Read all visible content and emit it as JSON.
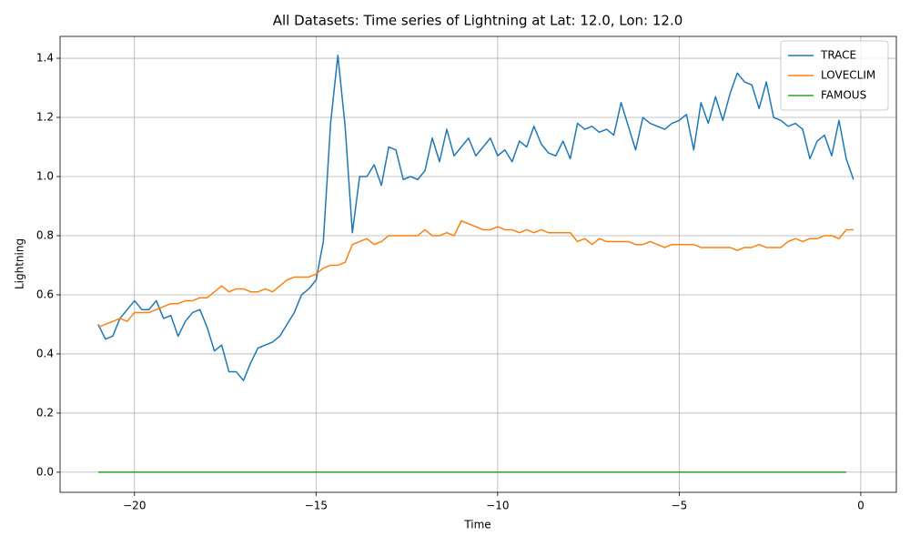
{
  "chart_data": {
    "type": "line",
    "title": "All Datasets: Time series of Lightning at Lat: 12.0, Lon: 12.0",
    "x_label": "Time",
    "y_label": "Lightning",
    "x": [
      -21,
      -20.8,
      -20.6,
      -20.4,
      -20.2,
      -20,
      -19.8,
      -19.6,
      -19.4,
      -19.2,
      -19,
      -18.8,
      -18.6,
      -18.4,
      -18.2,
      -18,
      -17.8,
      -17.6,
      -17.4,
      -17.2,
      -17,
      -16.8,
      -16.6,
      -16.4,
      -16.2,
      -16,
      -15.8,
      -15.6,
      -15.4,
      -15.2,
      -15,
      -14.8,
      -14.6,
      -14.4,
      -14.2,
      -14,
      -13.8,
      -13.6,
      -13.4,
      -13.2,
      -13,
      -12.8,
      -12.6,
      -12.4,
      -12.2,
      -12,
      -11.8,
      -11.6,
      -11.4,
      -11.2,
      -11,
      -10.8,
      -10.6,
      -10.4,
      -10.2,
      -10,
      -9.8,
      -9.6,
      -9.4,
      -9.2,
      -9,
      -8.8,
      -8.6,
      -8.4,
      -8.2,
      -8,
      -7.8,
      -7.6,
      -7.4,
      -7.2,
      -7,
      -6.8,
      -6.6,
      -6.4,
      -6.2,
      -6,
      -5.8,
      -5.6,
      -5.4,
      -5.2,
      -5,
      -4.8,
      -4.6,
      -4.4,
      -4.2,
      -4,
      -3.8,
      -3.6,
      -3.4,
      -3.2,
      -3,
      -2.8,
      -2.6,
      -2.4,
      -2.2,
      -2,
      -1.8,
      -1.6,
      -1.4,
      -1.2,
      -1,
      -0.8,
      -0.6,
      -0.4,
      -0.2
    ],
    "series": [
      {
        "name": "TRACE",
        "color": "#1f77b4",
        "values": [
          0.5,
          0.45,
          0.46,
          0.52,
          0.55,
          0.58,
          0.55,
          0.55,
          0.58,
          0.52,
          0.53,
          0.46,
          0.51,
          0.54,
          0.55,
          0.49,
          0.41,
          0.43,
          0.34,
          0.34,
          0.31,
          0.37,
          0.42,
          0.43,
          0.44,
          0.46,
          0.5,
          0.54,
          0.6,
          0.62,
          0.65,
          0.78,
          1.18,
          1.41,
          1.17,
          0.81,
          1.0,
          1.0,
          1.04,
          0.97,
          1.1,
          1.09,
          0.99,
          1.0,
          0.99,
          1.02,
          1.13,
          1.05,
          1.16,
          1.07,
          1.1,
          1.13,
          1.07,
          1.1,
          1.13,
          1.07,
          1.09,
          1.05,
          1.12,
          1.1,
          1.17,
          1.11,
          1.08,
          1.07,
          1.12,
          1.06,
          1.18,
          1.16,
          1.17,
          1.15,
          1.16,
          1.14,
          1.25,
          1.17,
          1.09,
          1.2,
          1.18,
          1.17,
          1.16,
          1.18,
          1.19,
          1.21,
          1.09,
          1.25,
          1.18,
          1.27,
          1.19,
          1.28,
          1.35,
          1.32,
          1.31,
          1.23,
          1.32,
          1.2,
          1.19,
          1.17,
          1.18,
          1.16,
          1.06,
          1.12,
          1.14,
          1.07,
          1.19,
          1.06,
          0.99
        ]
      },
      {
        "name": "LOVECLIM",
        "color": "#ff7f0e",
        "values": [
          0.49,
          0.5,
          0.51,
          0.52,
          0.51,
          0.54,
          0.54,
          0.54,
          0.55,
          0.56,
          0.57,
          0.57,
          0.58,
          0.58,
          0.59,
          0.59,
          0.61,
          0.63,
          0.61,
          0.62,
          0.62,
          0.61,
          0.61,
          0.62,
          0.61,
          0.63,
          0.65,
          0.66,
          0.66,
          0.66,
          0.67,
          0.69,
          0.7,
          0.7,
          0.71,
          0.77,
          0.78,
          0.79,
          0.77,
          0.78,
          0.8,
          0.8,
          0.8,
          0.8,
          0.8,
          0.82,
          0.8,
          0.8,
          0.81,
          0.8,
          0.85,
          0.84,
          0.83,
          0.82,
          0.82,
          0.83,
          0.82,
          0.82,
          0.81,
          0.82,
          0.81,
          0.82,
          0.81,
          0.81,
          0.81,
          0.81,
          0.78,
          0.79,
          0.77,
          0.79,
          0.78,
          0.78,
          0.78,
          0.78,
          0.77,
          0.77,
          0.78,
          0.77,
          0.76,
          0.77,
          0.77,
          0.77,
          0.77,
          0.76,
          0.76,
          0.76,
          0.76,
          0.76,
          0.75,
          0.76,
          0.76,
          0.77,
          0.76,
          0.76,
          0.76,
          0.78,
          0.79,
          0.78,
          0.79,
          0.79,
          0.8,
          0.8,
          0.79,
          0.82,
          0.82
        ]
      },
      {
        "name": "FAMOUS",
        "color": "#2ca02c",
        "values": [
          0,
          0,
          0,
          0,
          0,
          0,
          0,
          0,
          0,
          0,
          0,
          0,
          0,
          0,
          0,
          0,
          0,
          0,
          0,
          0,
          0,
          0,
          0,
          0,
          0,
          0,
          0,
          0,
          0,
          0,
          0,
          0,
          0,
          0,
          0,
          0,
          0,
          0,
          0,
          0,
          0,
          0,
          0,
          0,
          0,
          0,
          0,
          0,
          0,
          0,
          0,
          0,
          0,
          0,
          0,
          0,
          0,
          0,
          0,
          0,
          0,
          0,
          0,
          0,
          0,
          0,
          0,
          0,
          0,
          0,
          0,
          0,
          0,
          0,
          0,
          0,
          0,
          0,
          0,
          0,
          0,
          0,
          0,
          0,
          0,
          0,
          0,
          0,
          0,
          0,
          0,
          0,
          0,
          0,
          0,
          0,
          0,
          0,
          0,
          0,
          0,
          0,
          0,
          0,
          null
        ]
      }
    ],
    "xlim": [
      -22.05,
      0.98
    ],
    "ylim": [
      -0.068,
      1.474
    ],
    "xticks": [
      {
        "value": -20,
        "label": "−20"
      },
      {
        "value": -15,
        "label": "−15"
      },
      {
        "value": -10,
        "label": "−10"
      },
      {
        "value": -5,
        "label": "−5"
      },
      0
    ],
    "yticks": [
      {
        "value": 0,
        "label": "0.0"
      },
      0.2,
      0.4,
      0.6,
      0.8,
      {
        "value": 1,
        "label": "1.0"
      },
      1.2,
      1.4
    ],
    "grid": true,
    "legend": "upper right"
  }
}
